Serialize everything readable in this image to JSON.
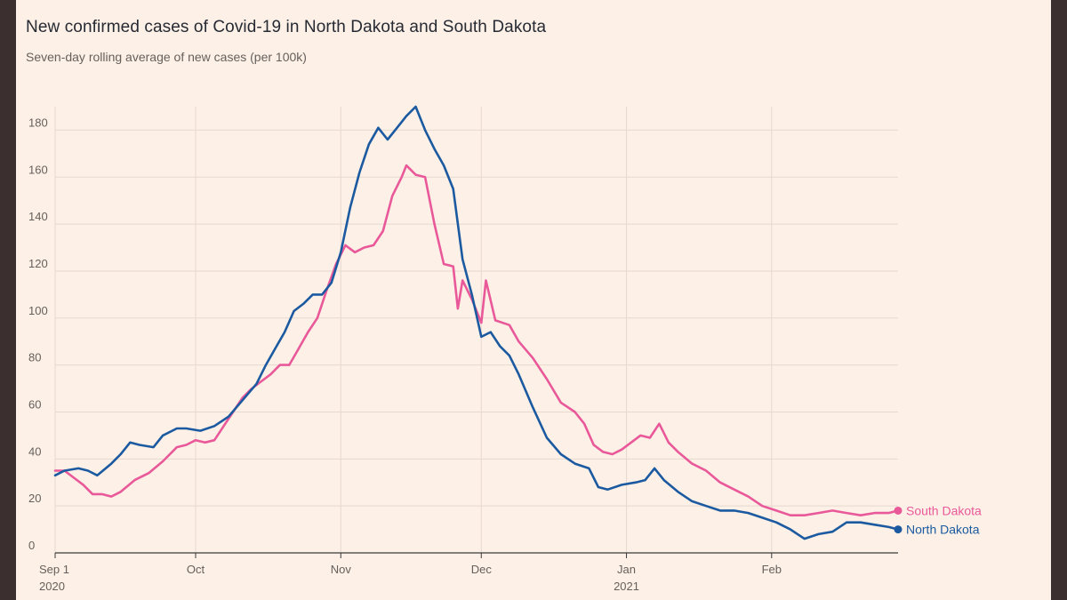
{
  "title": "New confirmed cases of Covid-19 in North Dakota and South Dakota",
  "subtitle": "Seven-day rolling average of new cases (per 100k)",
  "chart_data": {
    "type": "line",
    "title": "New confirmed cases of Covid-19 in North Dakota and South Dakota",
    "subtitle": "Seven-day rolling average of new cases (per 100k)",
    "xlabel": "",
    "ylabel": "",
    "x_range": [
      "2020-09-01",
      "2021-02-28"
    ],
    "ylim": [
      0,
      190
    ],
    "y_ticks": [
      0,
      20,
      40,
      60,
      80,
      100,
      120,
      140,
      160,
      180
    ],
    "x_ticks": [
      {
        "date": "2020-09-01",
        "label": "Sep 1",
        "year": "2020"
      },
      {
        "date": "2020-10-01",
        "label": "Oct",
        "year": ""
      },
      {
        "date": "2020-11-01",
        "label": "Nov",
        "year": ""
      },
      {
        "date": "2020-12-01",
        "label": "Dec",
        "year": ""
      },
      {
        "date": "2021-01-01",
        "label": "Jan",
        "year": "2021"
      },
      {
        "date": "2021-02-01",
        "label": "Feb",
        "year": ""
      }
    ],
    "grid": "vertical-and-horizontal",
    "legend": "direct labels at line ends (right)",
    "series": [
      {
        "name": "North Dakota",
        "color": "#1b5aa0",
        "points": [
          [
            "2020-09-01",
            33
          ],
          [
            "2020-09-03",
            35
          ],
          [
            "2020-09-06",
            36
          ],
          [
            "2020-09-08",
            35
          ],
          [
            "2020-09-10",
            33
          ],
          [
            "2020-09-13",
            38
          ],
          [
            "2020-09-15",
            42
          ],
          [
            "2020-09-17",
            47
          ],
          [
            "2020-09-19",
            46
          ],
          [
            "2020-09-22",
            45
          ],
          [
            "2020-09-24",
            50
          ],
          [
            "2020-09-27",
            53
          ],
          [
            "2020-09-29",
            53
          ],
          [
            "2020-10-02",
            52
          ],
          [
            "2020-10-05",
            54
          ],
          [
            "2020-10-08",
            58
          ],
          [
            "2020-10-11",
            65
          ],
          [
            "2020-10-14",
            72
          ],
          [
            "2020-10-16",
            80
          ],
          [
            "2020-10-18",
            87
          ],
          [
            "2020-10-20",
            94
          ],
          [
            "2020-10-22",
            103
          ],
          [
            "2020-10-24",
            106
          ],
          [
            "2020-10-26",
            110
          ],
          [
            "2020-10-28",
            110
          ],
          [
            "2020-10-30",
            115
          ],
          [
            "2020-11-01",
            128
          ],
          [
            "2020-11-03",
            147
          ],
          [
            "2020-11-05",
            162
          ],
          [
            "2020-11-07",
            174
          ],
          [
            "2020-11-09",
            181
          ],
          [
            "2020-11-11",
            176
          ],
          [
            "2020-11-13",
            181
          ],
          [
            "2020-11-15",
            186
          ],
          [
            "2020-11-17",
            190
          ],
          [
            "2020-11-19",
            180
          ],
          [
            "2020-11-21",
            172
          ],
          [
            "2020-11-23",
            165
          ],
          [
            "2020-11-25",
            155
          ],
          [
            "2020-11-27",
            125
          ],
          [
            "2020-11-29",
            110
          ],
          [
            "2020-12-01",
            92
          ],
          [
            "2020-12-03",
            94
          ],
          [
            "2020-12-05",
            88
          ],
          [
            "2020-12-07",
            84
          ],
          [
            "2020-12-09",
            76
          ],
          [
            "2020-12-12",
            62
          ],
          [
            "2020-12-15",
            49
          ],
          [
            "2020-12-18",
            42
          ],
          [
            "2020-12-21",
            38
          ],
          [
            "2020-12-24",
            36
          ],
          [
            "2020-12-26",
            28
          ],
          [
            "2020-12-28",
            27
          ],
          [
            "2020-12-31",
            29
          ],
          [
            "2021-01-03",
            30
          ],
          [
            "2021-01-05",
            31
          ],
          [
            "2021-01-07",
            36
          ],
          [
            "2021-01-09",
            31
          ],
          [
            "2021-01-12",
            26
          ],
          [
            "2021-01-15",
            22
          ],
          [
            "2021-01-18",
            20
          ],
          [
            "2021-01-21",
            18
          ],
          [
            "2021-01-24",
            18
          ],
          [
            "2021-01-27",
            17
          ],
          [
            "2021-01-30",
            15
          ],
          [
            "2021-02-02",
            13
          ],
          [
            "2021-02-05",
            10
          ],
          [
            "2021-02-08",
            6
          ],
          [
            "2021-02-11",
            8
          ],
          [
            "2021-02-14",
            9
          ],
          [
            "2021-02-17",
            13
          ],
          [
            "2021-02-20",
            13
          ],
          [
            "2021-02-23",
            12
          ],
          [
            "2021-02-26",
            11
          ],
          [
            "2021-02-28",
            10
          ]
        ]
      },
      {
        "name": "South Dakota",
        "color": "#e9599a",
        "points": [
          [
            "2020-09-01",
            35
          ],
          [
            "2020-09-03",
            35
          ],
          [
            "2020-09-05",
            32
          ],
          [
            "2020-09-07",
            29
          ],
          [
            "2020-09-09",
            25
          ],
          [
            "2020-09-11",
            25
          ],
          [
            "2020-09-13",
            24
          ],
          [
            "2020-09-15",
            26
          ],
          [
            "2020-09-18",
            31
          ],
          [
            "2020-09-21",
            34
          ],
          [
            "2020-09-24",
            39
          ],
          [
            "2020-09-27",
            45
          ],
          [
            "2020-09-29",
            46
          ],
          [
            "2020-10-01",
            48
          ],
          [
            "2020-10-03",
            47
          ],
          [
            "2020-10-05",
            48
          ],
          [
            "2020-10-07",
            54
          ],
          [
            "2020-10-09",
            60
          ],
          [
            "2020-10-11",
            66
          ],
          [
            "2020-10-13",
            70
          ],
          [
            "2020-10-15",
            73
          ],
          [
            "2020-10-17",
            76
          ],
          [
            "2020-10-19",
            80
          ],
          [
            "2020-10-21",
            80
          ],
          [
            "2020-10-23",
            87
          ],
          [
            "2020-10-25",
            94
          ],
          [
            "2020-10-27",
            100
          ],
          [
            "2020-10-29",
            112
          ],
          [
            "2020-10-31",
            123
          ],
          [
            "2020-11-02",
            131
          ],
          [
            "2020-11-04",
            128
          ],
          [
            "2020-11-06",
            130
          ],
          [
            "2020-11-08",
            131
          ],
          [
            "2020-11-10",
            137
          ],
          [
            "2020-11-12",
            152
          ],
          [
            "2020-11-14",
            160
          ],
          [
            "2020-11-15",
            165
          ],
          [
            "2020-11-17",
            161
          ],
          [
            "2020-11-19",
            160
          ],
          [
            "2020-11-21",
            140
          ],
          [
            "2020-11-23",
            123
          ],
          [
            "2020-11-25",
            122
          ],
          [
            "2020-11-26",
            104
          ],
          [
            "2020-11-27",
            116
          ],
          [
            "2020-11-29",
            108
          ],
          [
            "2020-12-01",
            98
          ],
          [
            "2020-12-02",
            116
          ],
          [
            "2020-12-04",
            99
          ],
          [
            "2020-12-07",
            97
          ],
          [
            "2020-12-09",
            90
          ],
          [
            "2020-12-12",
            83
          ],
          [
            "2020-12-15",
            74
          ],
          [
            "2020-12-18",
            64
          ],
          [
            "2020-12-21",
            60
          ],
          [
            "2020-12-23",
            55
          ],
          [
            "2020-12-25",
            46
          ],
          [
            "2020-12-27",
            43
          ],
          [
            "2020-12-29",
            42
          ],
          [
            "2020-12-31",
            44
          ],
          [
            "2021-01-02",
            47
          ],
          [
            "2021-01-04",
            50
          ],
          [
            "2021-01-06",
            49
          ],
          [
            "2021-01-08",
            55
          ],
          [
            "2021-01-10",
            47
          ],
          [
            "2021-01-12",
            43
          ],
          [
            "2021-01-15",
            38
          ],
          [
            "2021-01-18",
            35
          ],
          [
            "2021-01-21",
            30
          ],
          [
            "2021-01-24",
            27
          ],
          [
            "2021-01-27",
            24
          ],
          [
            "2021-01-30",
            20
          ],
          [
            "2021-02-02",
            18
          ],
          [
            "2021-02-05",
            16
          ],
          [
            "2021-02-08",
            16
          ],
          [
            "2021-02-11",
            17
          ],
          [
            "2021-02-14",
            18
          ],
          [
            "2021-02-17",
            17
          ],
          [
            "2021-02-20",
            16
          ],
          [
            "2021-02-23",
            17
          ],
          [
            "2021-02-26",
            17
          ],
          [
            "2021-02-28",
            18
          ]
        ]
      }
    ]
  }
}
